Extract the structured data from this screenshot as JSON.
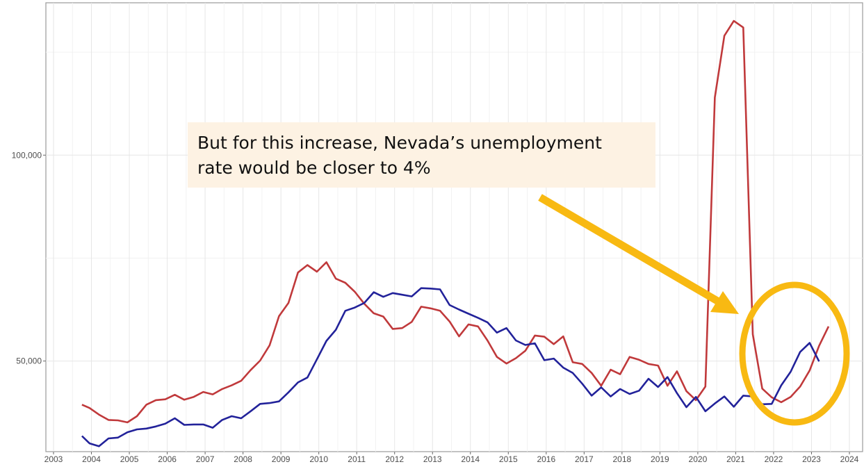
{
  "chart_data": {
    "type": "line",
    "title": "",
    "xlabel": "",
    "ylabel": "",
    "xlim": [
      2003,
      2024
    ],
    "ylim": [
      28000,
      137000
    ],
    "grid": true,
    "x_ticks": [
      "2003",
      "2004",
      "2005",
      "2006",
      "2007",
      "2008",
      "2009",
      "2010",
      "2011",
      "2012",
      "2013",
      "2014",
      "2015",
      "2016",
      "2017",
      "2018",
      "2019",
      "2020",
      "2021",
      "2022",
      "2023",
      "2024"
    ],
    "y_ticks": [
      {
        "value": 50000,
        "label": "50,000"
      },
      {
        "value": 100000,
        "label": "100,000"
      }
    ],
    "series": [
      {
        "color": "#c0393b",
        "points": [
          [
            2003.75,
            39400
          ],
          [
            2003.95,
            38600
          ],
          [
            2004.2,
            37000
          ],
          [
            2004.45,
            35700
          ],
          [
            2004.7,
            35600
          ],
          [
            2004.95,
            35100
          ],
          [
            2005.2,
            36600
          ],
          [
            2005.45,
            39400
          ],
          [
            2005.7,
            40500
          ],
          [
            2005.95,
            40700
          ],
          [
            2006.2,
            41800
          ],
          [
            2006.45,
            40600
          ],
          [
            2006.7,
            41300
          ],
          [
            2006.95,
            42500
          ],
          [
            2007.2,
            41900
          ],
          [
            2007.45,
            43200
          ],
          [
            2007.7,
            44100
          ],
          [
            2007.95,
            45200
          ],
          [
            2008.2,
            47800
          ],
          [
            2008.45,
            50100
          ],
          [
            2008.7,
            53800
          ],
          [
            2008.95,
            60900
          ],
          [
            2009.2,
            64100
          ],
          [
            2009.45,
            71500
          ],
          [
            2009.7,
            73300
          ],
          [
            2009.95,
            71700
          ],
          [
            2010.2,
            74000
          ],
          [
            2010.45,
            70000
          ],
          [
            2010.7,
            69000
          ],
          [
            2010.95,
            66800
          ],
          [
            2011.2,
            63900
          ],
          [
            2011.45,
            61600
          ],
          [
            2011.7,
            60800
          ],
          [
            2011.95,
            57800
          ],
          [
            2012.2,
            58000
          ],
          [
            2012.45,
            59500
          ],
          [
            2012.7,
            63200
          ],
          [
            2012.95,
            62800
          ],
          [
            2013.2,
            62200
          ],
          [
            2013.45,
            59600
          ],
          [
            2013.7,
            56000
          ],
          [
            2013.95,
            58900
          ],
          [
            2014.2,
            58400
          ],
          [
            2014.45,
            55000
          ],
          [
            2014.7,
            51000
          ],
          [
            2014.95,
            49400
          ],
          [
            2015.2,
            50700
          ],
          [
            2015.45,
            52500
          ],
          [
            2015.7,
            56200
          ],
          [
            2015.95,
            55900
          ],
          [
            2016.2,
            54100
          ],
          [
            2016.45,
            56000
          ],
          [
            2016.7,
            49700
          ],
          [
            2016.95,
            49300
          ],
          [
            2017.2,
            47100
          ],
          [
            2017.45,
            44000
          ],
          [
            2017.7,
            47900
          ],
          [
            2017.95,
            46800
          ],
          [
            2018.2,
            51000
          ],
          [
            2018.45,
            50300
          ],
          [
            2018.7,
            49300
          ],
          [
            2018.95,
            48900
          ],
          [
            2019.2,
            44000
          ],
          [
            2019.45,
            47500
          ],
          [
            2019.7,
            42700
          ],
          [
            2019.95,
            40500
          ],
          [
            2020.2,
            43800
          ],
          [
            2020.45,
            114000
          ],
          [
            2020.7,
            129000
          ],
          [
            2020.95,
            132600
          ],
          [
            2021.2,
            131000
          ],
          [
            2021.45,
            56500
          ],
          [
            2021.7,
            43300
          ],
          [
            2021.95,
            41200
          ],
          [
            2022.2,
            40000
          ],
          [
            2022.45,
            41300
          ],
          [
            2022.7,
            43800
          ],
          [
            2022.95,
            47700
          ],
          [
            2023.2,
            53700
          ],
          [
            2023.45,
            58400
          ]
        ]
      },
      {
        "color": "#22229a",
        "points": [
          [
            2003.75,
            31800
          ],
          [
            2003.95,
            30000
          ],
          [
            2004.2,
            29300
          ],
          [
            2004.45,
            31200
          ],
          [
            2004.7,
            31400
          ],
          [
            2004.95,
            32700
          ],
          [
            2005.2,
            33400
          ],
          [
            2005.45,
            33600
          ],
          [
            2005.7,
            34100
          ],
          [
            2005.95,
            34800
          ],
          [
            2006.2,
            36100
          ],
          [
            2006.45,
            34500
          ],
          [
            2006.7,
            34600
          ],
          [
            2006.95,
            34600
          ],
          [
            2007.2,
            33800
          ],
          [
            2007.45,
            35700
          ],
          [
            2007.7,
            36600
          ],
          [
            2007.95,
            36100
          ],
          [
            2008.2,
            37800
          ],
          [
            2008.45,
            39600
          ],
          [
            2008.7,
            39800
          ],
          [
            2008.95,
            40200
          ],
          [
            2009.2,
            42400
          ],
          [
            2009.45,
            44800
          ],
          [
            2009.7,
            46000
          ],
          [
            2009.95,
            50400
          ],
          [
            2010.2,
            54900
          ],
          [
            2010.45,
            57600
          ],
          [
            2010.7,
            62200
          ],
          [
            2010.95,
            63000
          ],
          [
            2011.2,
            64100
          ],
          [
            2011.45,
            66700
          ],
          [
            2011.7,
            65600
          ],
          [
            2011.95,
            66500
          ],
          [
            2012.2,
            66100
          ],
          [
            2012.45,
            65700
          ],
          [
            2012.7,
            67700
          ],
          [
            2012.95,
            67600
          ],
          [
            2013.2,
            67400
          ],
          [
            2013.45,
            63600
          ],
          [
            2013.7,
            62500
          ],
          [
            2013.95,
            61500
          ],
          [
            2014.2,
            60500
          ],
          [
            2014.45,
            59400
          ],
          [
            2014.7,
            56900
          ],
          [
            2014.95,
            58000
          ],
          [
            2015.2,
            55000
          ],
          [
            2015.45,
            53900
          ],
          [
            2015.7,
            54300
          ],
          [
            2015.95,
            50200
          ],
          [
            2016.2,
            50600
          ],
          [
            2016.45,
            48400
          ],
          [
            2016.7,
            47100
          ],
          [
            2016.95,
            44500
          ],
          [
            2017.2,
            41600
          ],
          [
            2017.45,
            43600
          ],
          [
            2017.7,
            41400
          ],
          [
            2017.95,
            43200
          ],
          [
            2018.2,
            42000
          ],
          [
            2018.45,
            42800
          ],
          [
            2018.7,
            45700
          ],
          [
            2018.95,
            43700
          ],
          [
            2019.2,
            46100
          ],
          [
            2019.45,
            42200
          ],
          [
            2019.7,
            38800
          ],
          [
            2019.95,
            41300
          ],
          [
            2020.2,
            37800
          ],
          [
            2020.45,
            39700
          ],
          [
            2020.7,
            41400
          ],
          [
            2020.95,
            38900
          ],
          [
            2021.2,
            41600
          ],
          [
            2021.45,
            41400
          ],
          [
            2021.7,
            39500
          ],
          [
            2021.95,
            39600
          ],
          [
            2022.2,
            44100
          ],
          [
            2022.45,
            47400
          ],
          [
            2022.7,
            52200
          ],
          [
            2022.95,
            54400
          ],
          [
            2023.2,
            49900
          ]
        ]
      }
    ]
  },
  "annotation": {
    "text": "But for this increase, Nevada’s unemployment rate would be closer to 4%",
    "background": "#fdf2e3",
    "arrow_color": "#f8b912",
    "highlight_ring_color": "#f8b912"
  }
}
